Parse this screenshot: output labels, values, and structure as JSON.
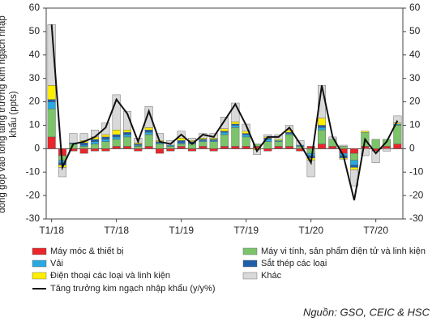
{
  "chart_data": {
    "type": "stacked-bar-line",
    "y_label": "đóng góp vào tổng tăng trưởng kim ngạch nhập khẩu (ppts)",
    "source": "Nguồn: GSO, CEIC & HSC",
    "categories": [
      "T1/18",
      null,
      null,
      null,
      null,
      null,
      "T7/18",
      null,
      null,
      null,
      null,
      null,
      "T1/19",
      null,
      null,
      null,
      null,
      null,
      "T7/19",
      null,
      null,
      null,
      null,
      null,
      "T1/20",
      null,
      null,
      null,
      null,
      null,
      "T7/20",
      null,
      null
    ],
    "ylim": [
      -30,
      60
    ],
    "yticks": [
      -30,
      -20,
      -10,
      0,
      10,
      20,
      30,
      40,
      50,
      60
    ],
    "series": [
      {
        "name": "Máy móc & thiết bị",
        "color": "#e8262b",
        "values": [
          5,
          -3,
          -1,
          -2,
          -1,
          -1,
          1,
          1,
          -1,
          1,
          -2,
          -1,
          1,
          -1,
          1,
          -1,
          1,
          1,
          1,
          1,
          -1,
          1,
          1,
          -1,
          1,
          2,
          1,
          -2,
          -2,
          1,
          -1,
          1,
          2
        ]
      },
      {
        "name": "Máy vi tính, sản phẩm điện tử và linh kiện",
        "color": "#7cc46a",
        "values": [
          12,
          -2,
          2,
          1,
          2,
          3,
          3,
          4,
          1,
          5,
          2,
          1,
          1,
          2,
          2,
          3,
          5,
          8,
          4,
          1,
          3,
          2,
          5,
          1,
          -2,
          6,
          3,
          1,
          -3,
          6,
          4,
          3,
          8
        ]
      },
      {
        "name": "Vải",
        "color": "#29a9e0",
        "values": [
          3,
          -1,
          0,
          0.5,
          1,
          1,
          1,
          1,
          0.5,
          1,
          0.5,
          0.5,
          0.5,
          0.5,
          0.5,
          0.5,
          1,
          1,
          1,
          0,
          1,
          0.5,
          0.5,
          0.5,
          -1,
          1,
          0,
          -1,
          -2,
          0,
          0,
          0,
          0.5
        ]
      },
      {
        "name": "Sắt thép các loại",
        "color": "#1f5fa8",
        "values": [
          1,
          -1,
          0.5,
          1,
          1,
          1,
          1,
          1,
          0.5,
          1,
          0.5,
          0,
          1,
          0.5,
          0.5,
          0.5,
          0.5,
          0.5,
          0.5,
          0,
          0.5,
          0,
          0.5,
          0,
          -1,
          1,
          0,
          -1,
          -1,
          0,
          0,
          0,
          0
        ]
      },
      {
        "name": "Điện thoại các loại và linh kiện",
        "color": "#ffee00",
        "values": [
          6,
          -1,
          0,
          1,
          1,
          1,
          2,
          1,
          0.5,
          1,
          0.5,
          0,
          1,
          0.5,
          0.5,
          0.5,
          1,
          1,
          1,
          -0.5,
          0.5,
          0.5,
          1,
          0,
          -1,
          3,
          0,
          -0.5,
          -1,
          0.5,
          0,
          0,
          0.5
        ]
      },
      {
        "name": "Khác",
        "color": "#d9d9d9",
        "values": [
          26,
          -4,
          4,
          3,
          3,
          5,
          15,
          8,
          2,
          9,
          3,
          2,
          3,
          1,
          2,
          2,
          5,
          8,
          3,
          -2,
          1,
          2,
          2,
          2,
          -7,
          14,
          1,
          0.5,
          -7,
          -3,
          -5,
          -1,
          3
        ]
      },
      {
        "name": "Tăng trưởng kim ngạch nhập khẩu (y/y%)",
        "color": "#111111",
        "type": "line",
        "values": [
          53,
          -8,
          2,
          3,
          5,
          9,
          21,
          15,
          3,
          16,
          3,
          2,
          6,
          2,
          6,
          5,
          12,
          19,
          10,
          -1,
          5,
          5,
          9,
          2,
          -6,
          27,
          5,
          -3,
          -22,
          4,
          -2,
          3,
          12
        ]
      }
    ]
  }
}
